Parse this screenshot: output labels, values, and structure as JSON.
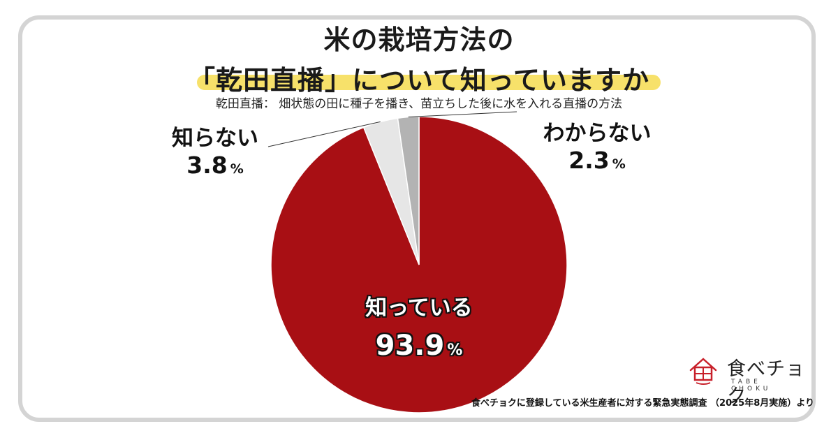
{
  "title": {
    "line1": "米の栽培方法の",
    "line2": "「乾田直播」について知っていますか"
  },
  "definition": "乾田直播： 畑状態の田に種子を播き、苗立ちした後に水を入れる直播の方法",
  "chart_data": {
    "type": "pie",
    "slices": [
      {
        "label": "知っている",
        "value": 93.9,
        "color": "#a80f14"
      },
      {
        "label": "知らない",
        "value": 3.8,
        "color": "#e6e6e6"
      },
      {
        "label": "わからない",
        "value": 2.3,
        "color": "#b3b3b3"
      }
    ],
    "unit": "%",
    "start": "12 o'clock",
    "direction": "clockwise"
  },
  "labels": {
    "shitteiru": {
      "category": "知っている",
      "value": "93.9",
      "unit": "%"
    },
    "shiranai": {
      "category": "知らない",
      "value": "3.8",
      "unit": "%"
    },
    "wakaranai": {
      "category": "わからない",
      "value": "2.3",
      "unit": "%"
    }
  },
  "logo": {
    "name": "食べチョク",
    "subtitle": "TABE CHOKU",
    "accent": "#c8202a"
  },
  "source": "食べチョクに登録している米生産者に対する緊急実態調査 （2025年8月実施）より"
}
